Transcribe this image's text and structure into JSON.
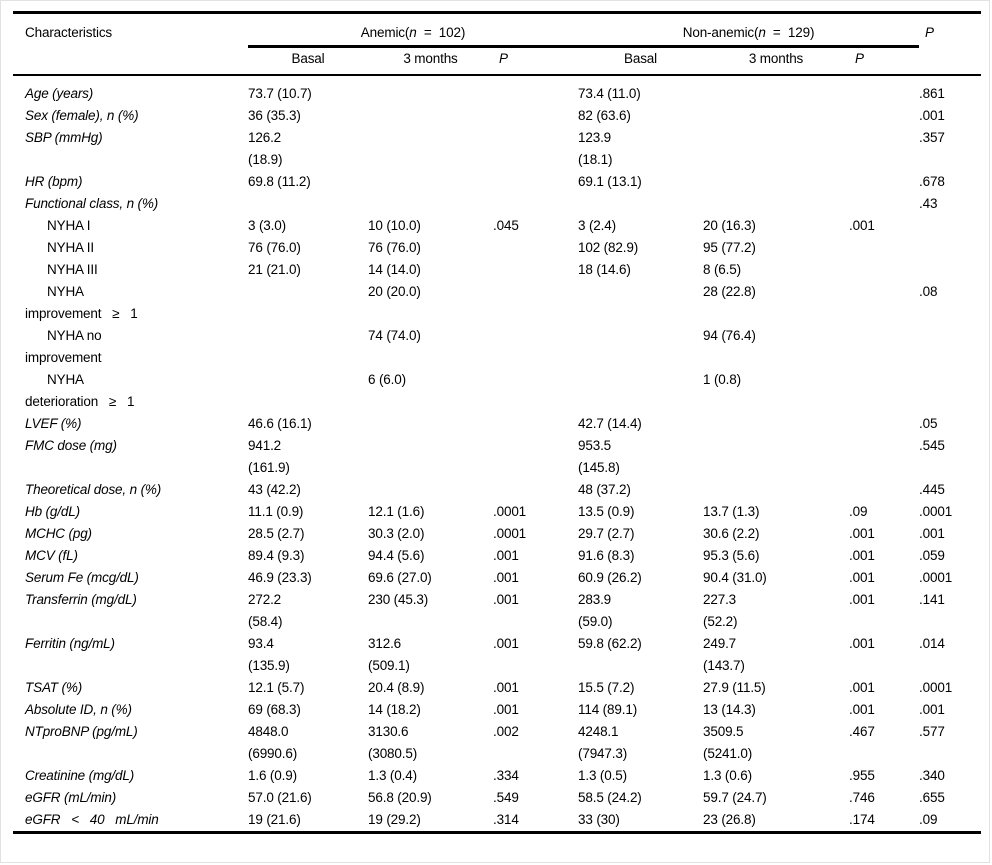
{
  "page": {
    "background": "#ffffff",
    "rule_color": "#000000",
    "text_color": "#000000"
  },
  "table": {
    "corner_label": "Characteristics",
    "overall_p_label": "P",
    "groups": [
      {
        "pre": "Anemic(",
        "n": "n",
        "post": "  =  102)"
      },
      {
        "pre": "Non-anemic(",
        "n": "n",
        "post": "  =  129)"
      }
    ],
    "subheaders": [
      "Basal",
      "3 months",
      "P",
      "Basal",
      "3 months",
      "P"
    ],
    "rows": [
      {
        "label": "Age (years)",
        "italic": true,
        "indent": false,
        "cells": [
          "73.7 (10.7)",
          "",
          "",
          "73.4 (11.0)",
          "",
          "",
          ".861"
        ]
      },
      {
        "label": "Sex (female), n (%)",
        "italic": true,
        "indent": false,
        "cells": [
          "36 (35.3)",
          "",
          "",
          "82 (63.6)",
          "",
          "",
          ".001"
        ]
      },
      {
        "label": "SBP (mmHg)",
        "italic": true,
        "indent": false,
        "cells": [
          "126.2\n(18.9)",
          "",
          "",
          "123.9\n(18.1)",
          "",
          "",
          ".357"
        ]
      },
      {
        "label": "HR (bpm)",
        "italic": true,
        "indent": false,
        "cells": [
          "69.8 (11.2)",
          "",
          "",
          "69.1 (13.1)",
          "",
          "",
          ".678"
        ]
      },
      {
        "label": "Functional class, n (%)",
        "italic": true,
        "indent": false,
        "cells": [
          "",
          "",
          "",
          "",
          "",
          "",
          ".43"
        ]
      },
      {
        "label": "NYHA I",
        "italic": false,
        "indent": true,
        "cells": [
          "3 (3.0)",
          "10 (10.0)",
          ".045",
          "3 (2.4)",
          "20 (16.3)",
          ".001",
          ""
        ]
      },
      {
        "label": "NYHA II",
        "italic": false,
        "indent": true,
        "cells": [
          "76 (76.0)",
          "76 (76.0)",
          "",
          "102 (82.9)",
          "95 (77.2)",
          "",
          ""
        ]
      },
      {
        "label": "NYHA III",
        "italic": false,
        "indent": true,
        "cells": [
          "21 (21.0)",
          "14 (14.0)",
          "",
          "18 (14.6)",
          "8 (6.5)",
          "",
          ""
        ]
      },
      {
        "label": "NYHA\nimprovement   ≥   1",
        "italic": false,
        "indent": true,
        "cells": [
          "",
          "20 (20.0)",
          "",
          "",
          "28 (22.8)",
          "",
          ".08"
        ]
      },
      {
        "label": "NYHA no\nimprovement",
        "italic": false,
        "indent": true,
        "cells": [
          "",
          "74 (74.0)",
          "",
          "",
          "94 (76.4)",
          "",
          ""
        ]
      },
      {
        "label": "NYHA\ndeterioration   ≥   1",
        "italic": false,
        "indent": true,
        "cells": [
          "",
          "6 (6.0)",
          "",
          "",
          "1 (0.8)",
          "",
          ""
        ]
      },
      {
        "label": "LVEF (%)",
        "italic": true,
        "indent": false,
        "cells": [
          "46.6 (16.1)",
          "",
          "",
          "42.7 (14.4)",
          "",
          "",
          ".05"
        ]
      },
      {
        "label": "FMC dose (mg)",
        "italic": true,
        "indent": false,
        "cells": [
          "941.2\n(161.9)",
          "",
          "",
          "953.5\n(145.8)",
          "",
          "",
          ".545"
        ]
      },
      {
        "label": "Theoretical dose, n (%)",
        "italic": true,
        "indent": false,
        "cells": [
          "43 (42.2)",
          "",
          "",
          "48 (37.2)",
          "",
          "",
          ".445"
        ]
      },
      {
        "label": "Hb (g/dL)",
        "italic": true,
        "indent": false,
        "cells": [
          "11.1 (0.9)",
          "12.1 (1.6)",
          ".0001",
          "13.5 (0.9)",
          "13.7 (1.3)",
          ".09",
          ".0001"
        ]
      },
      {
        "label": "MCHC (pg)",
        "italic": true,
        "indent": false,
        "cells": [
          "28.5 (2.7)",
          "30.3 (2.0)",
          ".0001",
          "29.7 (2.7)",
          "30.6 (2.2)",
          ".001",
          ".001"
        ]
      },
      {
        "label": "MCV (fL)",
        "italic": true,
        "indent": false,
        "cells": [
          "89.4 (9.3)",
          "94.4 (5.6)",
          ".001",
          "91.6 (8.3)",
          "95.3 (5.6)",
          ".001",
          ".059"
        ]
      },
      {
        "label": "Serum Fe (mcg/dL)",
        "italic": true,
        "indent": false,
        "cells": [
          "46.9 (23.3)",
          "69.6 (27.0)",
          ".001",
          "60.9 (26.2)",
          "90.4 (31.0)",
          ".001",
          ".0001"
        ]
      },
      {
        "label": "Transferrin (mg/dL)",
        "italic": true,
        "indent": false,
        "cells": [
          "272.2\n(58.4)",
          "230 (45.3)",
          ".001",
          "283.9\n(59.0)",
          "227.3\n(52.2)",
          ".001",
          ".141"
        ]
      },
      {
        "label": "Ferritin (ng/mL)",
        "italic": true,
        "indent": false,
        "cells": [
          "93.4\n(135.9)",
          "312.6\n(509.1)",
          ".001",
          "59.8 (62.2)",
          "249.7\n(143.7)",
          ".001",
          ".014"
        ]
      },
      {
        "label": "TSAT (%)",
        "italic": true,
        "indent": false,
        "cells": [
          "12.1 (5.7)",
          "20.4 (8.9)",
          ".001",
          "15.5 (7.2)",
          "27.9 (11.5)",
          ".001",
          ".0001"
        ]
      },
      {
        "label": "Absolute ID, n (%)",
        "italic": true,
        "indent": false,
        "cells": [
          "69 (68.3)",
          "14 (18.2)",
          ".001",
          "114 (89.1)",
          "13 (14.3)",
          ".001",
          ".001"
        ]
      },
      {
        "label": "NTproBNP (pg/mL)",
        "italic": true,
        "indent": false,
        "cells": [
          "4848.0\n(6990.6)",
          "3130.6\n(3080.5)",
          ".002",
          "4248.1\n(7947.3)",
          "3509.5\n(5241.0)",
          ".467",
          ".577"
        ]
      },
      {
        "label": "Creatinine (mg/dL)",
        "italic": true,
        "indent": false,
        "cells": [
          "1.6 (0.9)",
          "1.3 (0.4)",
          ".334",
          "1.3 (0.5)",
          "1.3 (0.6)",
          ".955",
          ".340"
        ]
      },
      {
        "label": "eGFR (mL/min)",
        "italic": true,
        "indent": false,
        "cells": [
          "57.0 (21.6)",
          "56.8 (20.9)",
          ".549",
          "58.5 (24.2)",
          "59.7 (24.7)",
          ".746",
          ".655"
        ]
      },
      {
        "label": "eGFR   <   40   mL/min",
        "italic": true,
        "indent": false,
        "cells": [
          "19 (21.6)",
          "19 (29.2)",
          ".314",
          "33 (30)",
          "23 (26.8)",
          ".174",
          ".09"
        ]
      }
    ]
  }
}
